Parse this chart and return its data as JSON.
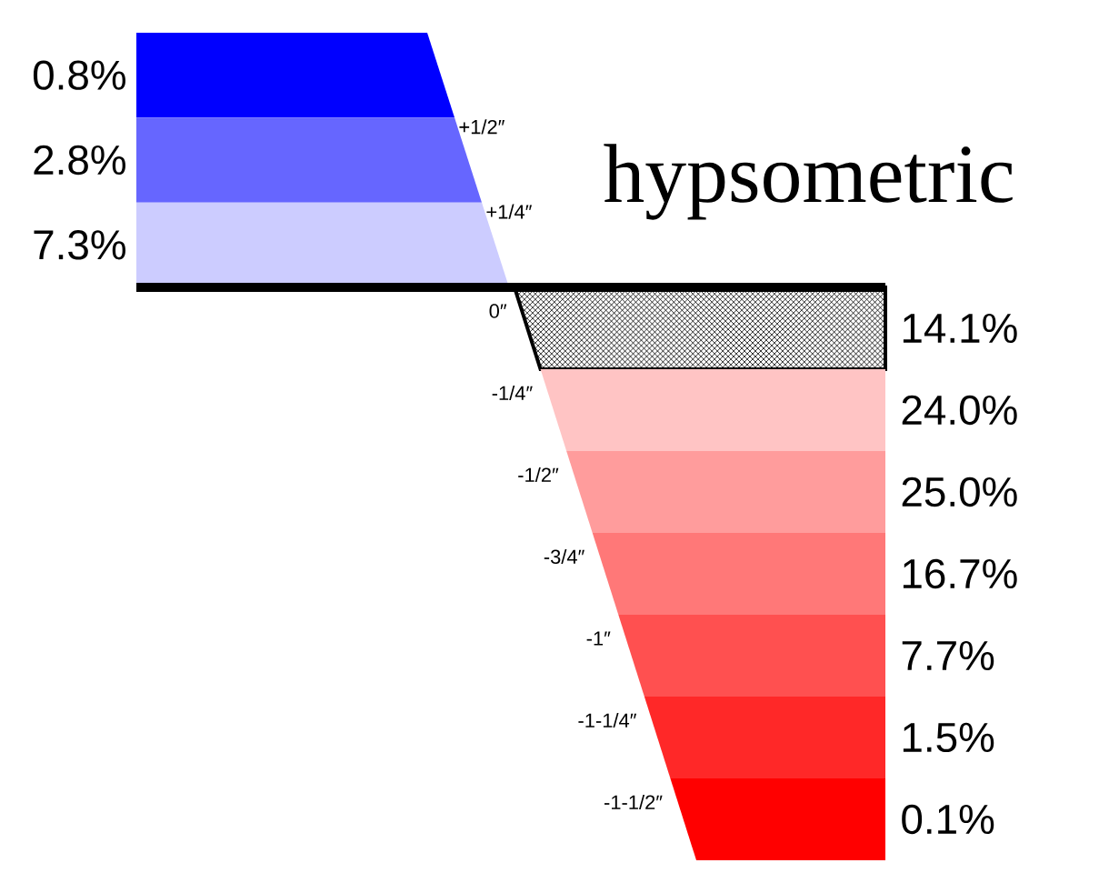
{
  "chart_data": {
    "type": "other",
    "title": "hypsometric",
    "values": [
      0.8,
      2.8,
      7.3,
      14.1,
      24.0,
      25.0,
      16.7,
      7.7,
      1.5,
      0.1
    ],
    "value_labels": [
      "0.8%",
      "2.8%",
      "7.3%",
      "14.1%",
      "24.0%",
      "25.0%",
      "16.7%",
      "7.7%",
      "1.5%",
      "0.1%"
    ],
    "colors": [
      "#0000ff",
      "#6666ff",
      "#ccccff",
      "#000000",
      "#ffc4c4",
      "#ff9c9c",
      "#ff7878",
      "#ff5050",
      "#ff2828",
      "#ff0000"
    ],
    "annotations": [
      "+1/2″",
      "+1/4″",
      "0″",
      "-1/4″",
      "-1/2″",
      "-3/4″",
      "-1″",
      "-1-1/4″",
      "-1-1/2″"
    ]
  }
}
